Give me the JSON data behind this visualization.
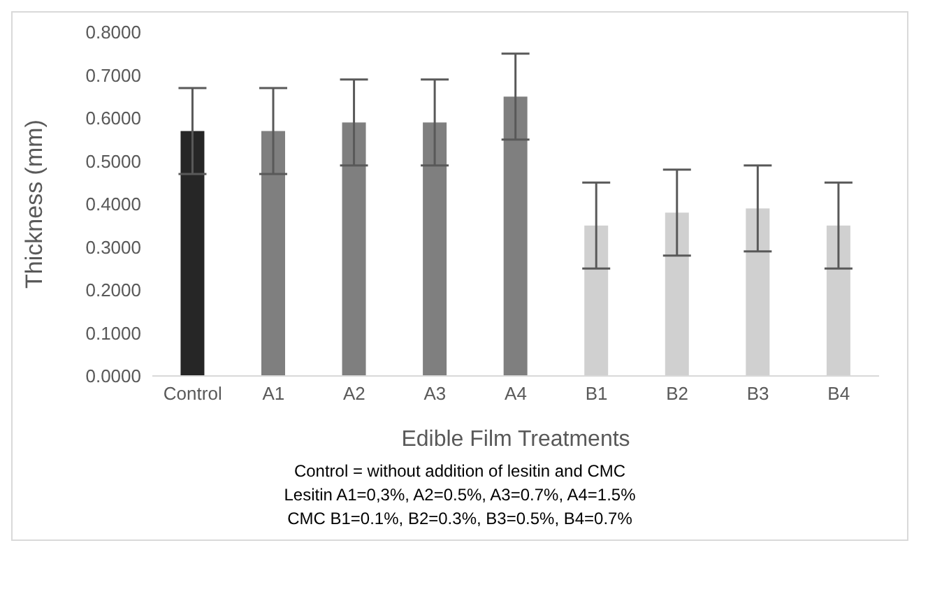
{
  "chart_data": {
    "type": "bar",
    "xlabel": "Edible Film Treatments",
    "ylabel": "Thickness (mm)",
    "categories": [
      "Control",
      "A1",
      "A2",
      "A3",
      "A4",
      "B1",
      "B2",
      "B3",
      "B4"
    ],
    "values": [
      0.57,
      0.57,
      0.59,
      0.59,
      0.65,
      0.35,
      0.38,
      0.39,
      0.35
    ],
    "colors": [
      "#262626",
      "#7f7f7f",
      "#7f7f7f",
      "#7f7f7f",
      "#7f7f7f",
      "#d0d0d0",
      "#d0d0d0",
      "#d0d0d0",
      "#d0d0d0"
    ],
    "errors": [
      0.1,
      0.1,
      0.1,
      0.1,
      0.1,
      0.1,
      0.1,
      0.1,
      0.1
    ],
    "ylim": [
      0,
      0.8
    ],
    "yticks": [
      {
        "value": 0,
        "label": "0.0000"
      },
      {
        "value": 0.1,
        "label": "0.1000"
      },
      {
        "value": 0.2,
        "label": "0.2000"
      },
      {
        "value": 0.3,
        "label": "0.3000"
      },
      {
        "value": 0.4,
        "label": "0.4000"
      },
      {
        "value": 0.5,
        "label": "0.5000"
      },
      {
        "value": 0.6,
        "label": "0.6000"
      },
      {
        "value": 0.7,
        "label": "0.7000"
      },
      {
        "value": 0.8,
        "label": "0.8000"
      }
    ],
    "grid": false,
    "legend": false,
    "annotations": [
      "Control = without  addition of lesitin and CMC",
      "Lesitin A1=0,3%, A2=0.5%, A3=0.7%, A4=1.5%",
      "CMC B1=0.1%, B2=0.3%, B3=0.5%, B4=0.7%"
    ]
  }
}
